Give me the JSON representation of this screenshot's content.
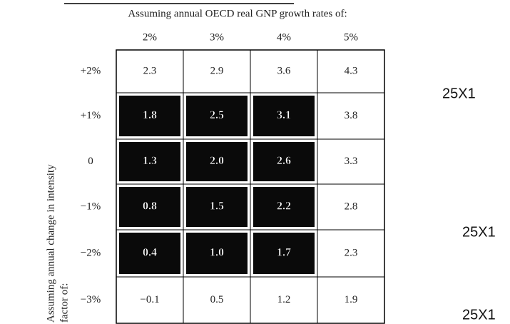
{
  "header": {
    "title": "Assuming annual OECD real GNP growth rates of:",
    "side_label": [
      "Assuming annual change in intensity",
      "factor of:"
    ]
  },
  "table": {
    "columns": [
      "2%",
      "3%",
      "4%",
      "5%"
    ],
    "rows": [
      {
        "label": "+2%",
        "cells": [
          "2.3",
          "2.9",
          "3.6",
          "4.3"
        ]
      },
      {
        "label": "+1%",
        "cells": [
          "1.8",
          "2.5",
          "3.1",
          "3.8"
        ]
      },
      {
        "label": "0",
        "cells": [
          "1.3",
          "2.0",
          "2.6",
          "3.3"
        ]
      },
      {
        "label": "−1%",
        "cells": [
          "0.8",
          "1.5",
          "2.2",
          "2.8"
        ]
      },
      {
        "label": "−2%",
        "cells": [
          "0.4",
          "1.0",
          "1.7",
          "2.3"
        ]
      },
      {
        "label": "−3%",
        "cells": [
          "−0.1",
          "0.5",
          "1.2",
          "1.9"
        ]
      }
    ]
  },
  "stamps": [
    "25X1",
    "25X1",
    "25X1"
  ]
}
